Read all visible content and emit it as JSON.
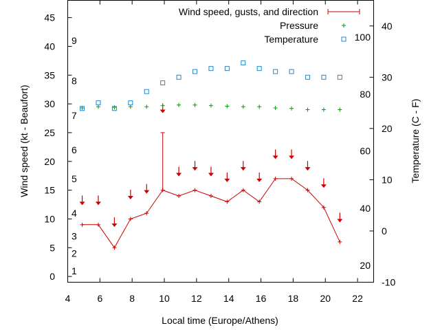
{
  "chart_data": {
    "type": "line",
    "xlabel": "Local time (Europe/Athens)",
    "ylabel": "Wind speed (kt - Beaufort)",
    "y2label": "Temperature (C - F)",
    "xlim": [
      4,
      23
    ],
    "ylim": [
      -1,
      48
    ],
    "y2lim": [
      -10,
      45
    ],
    "x_ticks": [
      4,
      6,
      8,
      10,
      12,
      14,
      16,
      18,
      20,
      22
    ],
    "y_ticks": [
      0,
      5,
      10,
      15,
      20,
      25,
      30,
      35,
      40,
      45
    ],
    "y2_ticks": [
      -10,
      0,
      10,
      20,
      30,
      40
    ],
    "beaufort_labels": [
      {
        "label": "1",
        "kt": 1
      },
      {
        "label": "2",
        "kt": 4
      },
      {
        "label": "3",
        "kt": 7
      },
      {
        "label": "4",
        "kt": 11
      },
      {
        "label": "5",
        "kt": 17
      },
      {
        "label": "6",
        "kt": 22
      },
      {
        "label": "7",
        "kt": 28
      },
      {
        "label": "8",
        "kt": 34
      },
      {
        "label": "9",
        "kt": 41
      }
    ],
    "fahrenheit_labels": [
      {
        "label": "20",
        "celsius": -6.7
      },
      {
        "label": "40",
        "celsius": 4.4
      },
      {
        "label": "60",
        "celsius": 15.6
      },
      {
        "label": "80",
        "celsius": 26.7
      },
      {
        "label": "100",
        "celsius": 37.8
      }
    ],
    "legend": {
      "wind": "Wind speed, gusts, and direction",
      "pressure": "Pressure",
      "temperature": "Temperature",
      "placement": "top-right"
    },
    "series": [
      {
        "name": "Wind speed, gusts, and direction",
        "axis": "left",
        "color": "#cc0000",
        "points": [
          {
            "x": 4.9,
            "y": 9,
            "dir_y": 13
          },
          {
            "x": 5.9,
            "y": 9,
            "dir_y": 13
          },
          {
            "x": 6.9,
            "y": 5,
            "dir_y": 9.2
          },
          {
            "x": 7.9,
            "y": 10,
            "dir_y": 14
          },
          {
            "x": 8.9,
            "y": 11,
            "dir_y": 15
          },
          {
            "x": 9.9,
            "y": 15,
            "gust": 25,
            "dir_y": 29
          },
          {
            "x": 10.9,
            "y": 14,
            "dir_y": 18
          },
          {
            "x": 11.9,
            "y": 15,
            "dir_y": 19
          },
          {
            "x": 12.9,
            "y": 14,
            "dir_y": 18
          },
          {
            "x": 13.9,
            "y": 13,
            "dir_y": 17
          },
          {
            "x": 14.9,
            "y": 15,
            "dir_y": 19
          },
          {
            "x": 15.9,
            "y": 13,
            "dir_y": 17
          },
          {
            "x": 16.9,
            "y": 17,
            "dir_y": 21
          },
          {
            "x": 17.9,
            "y": 17,
            "dir_y": 21
          },
          {
            "x": 18.9,
            "y": 15,
            "dir_y": 19
          },
          {
            "x": 19.9,
            "y": 12,
            "dir_y": 16
          },
          {
            "x": 20.9,
            "y": 6,
            "dir_y": 10
          }
        ]
      },
      {
        "name": "Pressure",
        "axis": "left",
        "color": "#00a000",
        "points": [
          {
            "x": 4.9,
            "y": 29.3
          },
          {
            "x": 5.9,
            "y": 29.5
          },
          {
            "x": 6.9,
            "y": 29.4
          },
          {
            "x": 7.9,
            "y": 29.5
          },
          {
            "x": 8.9,
            "y": 29.5
          },
          {
            "x": 9.9,
            "y": 29.7
          },
          {
            "x": 10.9,
            "y": 29.8
          },
          {
            "x": 11.9,
            "y": 29.8
          },
          {
            "x": 12.9,
            "y": 29.7
          },
          {
            "x": 13.9,
            "y": 29.6
          },
          {
            "x": 14.9,
            "y": 29.5
          },
          {
            "x": 15.9,
            "y": 29.5
          },
          {
            "x": 16.9,
            "y": 29.3
          },
          {
            "x": 17.9,
            "y": 29.2
          },
          {
            "x": 18.9,
            "y": 29.0
          },
          {
            "x": 19.9,
            "y": 29.0
          },
          {
            "x": 20.9,
            "y": 29.0
          }
        ]
      },
      {
        "name": "Temperature",
        "axis": "right",
        "color": "#1e88d0",
        "points": [
          {
            "x": 4.9,
            "y": 23.9
          },
          {
            "x": 5.9,
            "y": 25.0
          },
          {
            "x": 6.9,
            "y": 23.9
          },
          {
            "x": 7.9,
            "y": 25.0
          },
          {
            "x": 8.9,
            "y": 27.2
          },
          {
            "x": 9.9,
            "y": 28.9
          },
          {
            "x": 10.9,
            "y": 30.0
          },
          {
            "x": 11.9,
            "y": 31.1
          },
          {
            "x": 12.9,
            "y": 31.7
          },
          {
            "x": 13.9,
            "y": 31.7
          },
          {
            "x": 14.9,
            "y": 32.8
          },
          {
            "x": 15.9,
            "y": 31.7
          },
          {
            "x": 16.9,
            "y": 31.1
          },
          {
            "x": 17.9,
            "y": 31.1
          },
          {
            "x": 18.9,
            "y": 30.0
          },
          {
            "x": 19.9,
            "y": 30.0
          },
          {
            "x": 20.9,
            "y": 30.0
          }
        ]
      }
    ]
  }
}
